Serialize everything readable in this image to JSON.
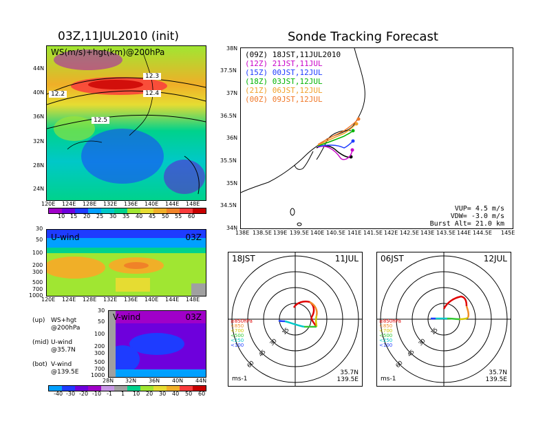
{
  "left": {
    "title": "03Z,11JUL2010 (init)",
    "top_panel": {
      "label": "WS(m/s)+hgt(km)@200hPa",
      "lat_ticks": [
        "44N",
        "40N",
        "36N",
        "32N",
        "28N",
        "24N"
      ],
      "lon_ticks": [
        "120E",
        "124E",
        "128E",
        "132E",
        "136E",
        "140E",
        "144E",
        "148E"
      ],
      "contour_labels": [
        "12.2",
        "12.3",
        "12.4",
        "12.5"
      ],
      "colorbar_ticks": [
        "10",
        "15",
        "20",
        "25",
        "30",
        "35",
        "40",
        "45",
        "50",
        "55",
        "60"
      ],
      "colorbar_colors": [
        "#a000c8",
        "#6e00dc",
        "#1e3cff",
        "#00a0ff",
        "#00c8c8",
        "#00d28c",
        "#a0e632",
        "#e6dc32",
        "#f0af28",
        "#f08228",
        "#fa3c3c",
        "#c80000"
      ]
    },
    "mid_panel": {
      "label": "U-wind",
      "time": "03Z",
      "p_ticks": [
        "30",
        "50",
        "100",
        "200",
        "300",
        "500",
        "700",
        "1000"
      ],
      "lon_ticks": [
        "120E",
        "124E",
        "128E",
        "132E",
        "136E",
        "140E",
        "144E",
        "148E"
      ]
    },
    "bot_panel": {
      "label": "V-wind",
      "time": "03Z",
      "p_ticks": [
        "30",
        "50",
        "100",
        "200",
        "300",
        "500",
        "700",
        "1000"
      ],
      "lat_ticks": [
        "28N",
        "32N",
        "36N",
        "40N",
        "44N"
      ]
    },
    "notes": [
      {
        "k": "(up)",
        "v": "WS+hgt",
        "sub": "@200hPa"
      },
      {
        "k": "(mid)",
        "v": "U-wind",
        "sub": "@35.7N"
      },
      {
        "k": "(bot)",
        "v": "V-wind",
        "sub": "@139.5E"
      }
    ],
    "bottom_colorbar_ticks": [
      "-40",
      "-30",
      "-20",
      "-10",
      "-1",
      "1",
      "10",
      "20",
      "30",
      "40",
      "50",
      "60"
    ]
  },
  "right": {
    "title": "Sonde Tracking Forecast",
    "map": {
      "lat_ticks": [
        "38N",
        "37.5N",
        "37N",
        "36.5N",
        "36N",
        "35.5N",
        "35N",
        "34.5N",
        "34N"
      ],
      "lon_ticks": [
        "138E",
        "138.5E",
        "139E",
        "139.5E",
        "140E",
        "140.5E",
        "141E",
        "141.5E",
        "142E",
        "142.5E",
        "143E",
        "143.5E",
        "144E",
        "144.5E",
        "145E"
      ],
      "legend": [
        {
          "z": "(09Z)",
          "t": "18JST,11JUL2010",
          "color": "#000000"
        },
        {
          "z": "(12Z)",
          "t": "21JST,11JUL",
          "color": "#c800c8"
        },
        {
          "z": "(15Z)",
          "t": "00JST,12JUL",
          "color": "#1e3cff"
        },
        {
          "z": "(18Z)",
          "t": "03JST,12JUL",
          "color": "#00b400"
        },
        {
          "z": "(21Z)",
          "t": "06JST,12JUL",
          "color": "#f0a028"
        },
        {
          "z": "(00Z)",
          "t": "09JST,12JUL",
          "color": "#f07828"
        }
      ],
      "params": [
        "VUP= 4.5 m/s",
        "VDW= -3.0 m/s",
        "Burst Alt= 21.0 km"
      ]
    },
    "hodo_left": {
      "time": "18JST",
      "date": "11JUL",
      "rings": [
        "15",
        "30",
        "45",
        "60"
      ],
      "levels": [
        "≥850hPa",
        "<850",
        "<700",
        "<500",
        "<250",
        "<100"
      ],
      "unit": "ms-1",
      "lat": "35.7N",
      "lon": "139.5E"
    },
    "hodo_right": {
      "time": "06JST",
      "date": "12JUL",
      "rings": [
        "15",
        "30",
        "45",
        "60"
      ],
      "levels": [
        "≥850hPa",
        "<850",
        "<700",
        "<500",
        "<250",
        "<100"
      ],
      "unit": "ms-1",
      "lat": "35.7N",
      "lon": "139.5E"
    },
    "level_colors": [
      "#e00000",
      "#f08c28",
      "#d2c800",
      "#32c832",
      "#00c8c8",
      "#1e3cff"
    ]
  }
}
